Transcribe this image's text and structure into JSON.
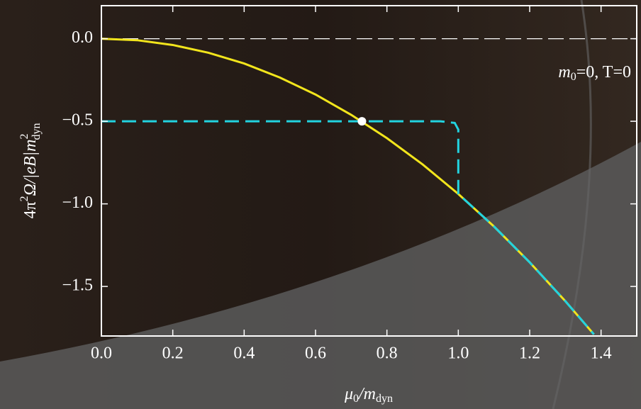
{
  "chart_data": {
    "type": "line",
    "xlabel": [
      "μ",
      "0",
      "/m",
      "dyn"
    ],
    "ylabel": [
      "4π",
      "2",
      "Ω/|eB|m",
      "2",
      "dyn"
    ],
    "annotation": [
      "m",
      "0",
      "=0, T=0"
    ],
    "xlim": [
      0,
      1.5
    ],
    "ylim": [
      -1.8,
      0.2
    ],
    "xticks": [
      {
        "value": 0,
        "label": "0.0"
      },
      0.2,
      0.4,
      0.6,
      0.8,
      {
        "value": 1,
        "label": "1.0"
      },
      1.2,
      1.4
    ],
    "yticks": [
      {
        "value": 0,
        "label": "0.0"
      },
      {
        "value": -0.5,
        "label": "−0.5"
      },
      {
        "value": -1,
        "label": "−1.0"
      },
      {
        "value": -1.5,
        "label": "−1.5"
      }
    ],
    "reference_line": 0,
    "series": [
      {
        "color": "#f2e51c",
        "dash": false,
        "x": [
          0,
          0.1,
          0.2,
          0.3,
          0.4,
          0.5,
          0.6,
          0.7,
          0.8,
          0.9,
          1.0,
          1.1,
          1.2,
          1.3,
          1.38
        ],
        "values": [
          0,
          -0.009,
          -0.038,
          -0.085,
          -0.15,
          -0.235,
          -0.338,
          -0.461,
          -0.602,
          -0.761,
          -0.94,
          -1.137,
          -1.354,
          -1.589,
          -1.79
        ]
      },
      {
        "color": "#22d3e0",
        "dash": true,
        "x": [
          0,
          0.5,
          0.95,
          0.99,
          1.0,
          1.0,
          1.1,
          1.2,
          1.3,
          1.38
        ],
        "values": [
          -0.5,
          -0.5,
          -0.5,
          -0.51,
          -0.55,
          -0.94,
          -1.137,
          -1.354,
          -1.589,
          -1.79
        ]
      }
    ],
    "marker": {
      "x": 0.73,
      "y": -0.5,
      "color": "#ffffff"
    }
  }
}
